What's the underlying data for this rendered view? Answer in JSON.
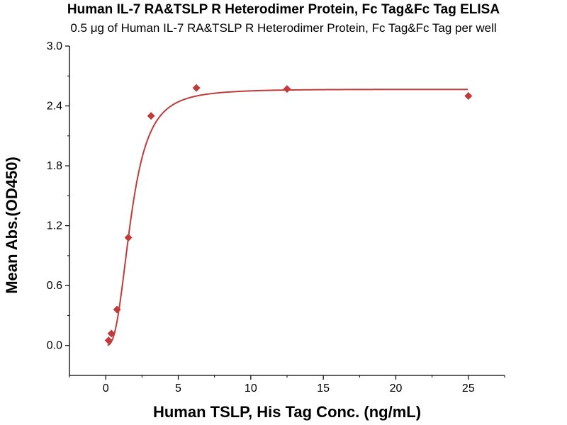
{
  "chart_data": {
    "type": "scatter",
    "title": "Human IL-7 RA&TSLP R Heterodimer Protein, Fc Tag&Fc Tag ELISA",
    "subtitle": "0.5 μg of Human IL-7 RA&TSLP R Heterodimer Protein, Fc Tag&Fc Tag per well",
    "xlabel": "Human TSLP, His Tag Conc. (ng/mL)",
    "ylabel": "Mean Abs.(OD450)",
    "xlim": [
      -2.5,
      27.5
    ],
    "ylim": [
      -0.3,
      3.0
    ],
    "x_ticks": [
      0,
      5,
      10,
      15,
      20,
      25
    ],
    "x_tick_labels": [
      "0",
      "5",
      "10",
      "15",
      "20",
      "25"
    ],
    "y_ticks": [
      0.0,
      0.6,
      1.2,
      1.8,
      2.4,
      3.0
    ],
    "y_tick_labels": [
      "0.0",
      "0.6",
      "1.2",
      "1.8",
      "2.4",
      "3.0"
    ],
    "grid": false,
    "color": "#c23b3b",
    "series": [
      {
        "x": [
          0.195,
          0.39,
          0.78,
          1.56,
          3.125,
          6.25,
          12.5,
          25
        ],
        "y": [
          0.05,
          0.12,
          0.36,
          1.08,
          2.3,
          2.58,
          2.57,
          2.5
        ],
        "marker": "diamond",
        "fit": "4-parameter logistic curve"
      }
    ]
  }
}
